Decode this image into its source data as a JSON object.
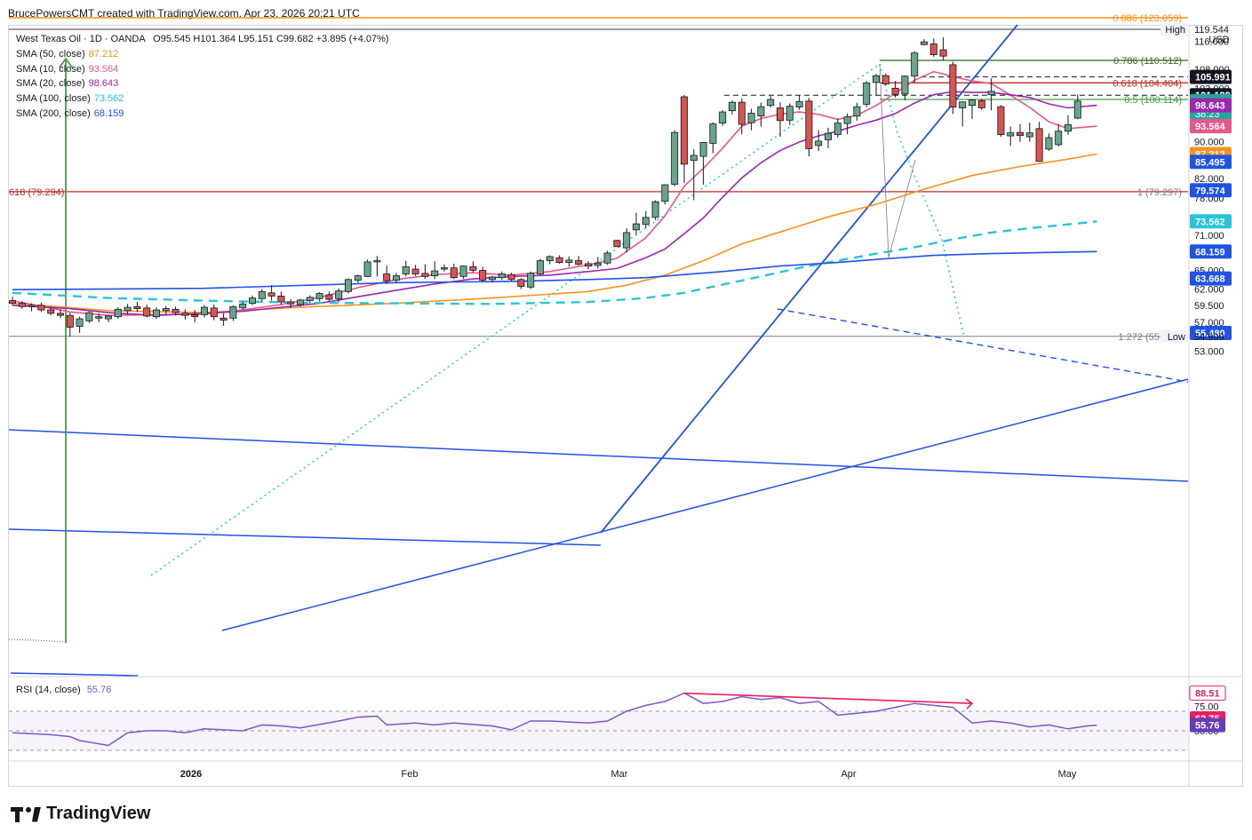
{
  "header": {
    "attribution": "BrucePowersCMT created with TradingView.com, Apr 23, 2026 20:21 UTC"
  },
  "legend": {
    "symbol": "West Texas Oil · 1D · OANDA",
    "ohlc": "O95.545 H101.364 L95.151 C99.682 +3.895 (+4.07%)",
    "indicators": [
      {
        "label": "SMA (50, close)",
        "value": "87.212",
        "color": "#f7931a"
      },
      {
        "label": "SMA (10, close)",
        "value": "93.564",
        "color": "#e8568a"
      },
      {
        "label": "SMA (20, close)",
        "value": "98.643",
        "color": "#9c27b0"
      },
      {
        "label": "SMA (100, close)",
        "value": "73.562",
        "color": "#26c6da"
      },
      {
        "label": "SMA (200, close)",
        "value": "68.159",
        "color": "#1e53e5"
      }
    ]
  },
  "rsi_legend": {
    "label": "RSI (14, close)",
    "value": "55.76"
  },
  "price_axis": {
    "currency": "USD",
    "ticks": [
      "116.000",
      "108.000",
      "103.000",
      "90.000",
      "82.000",
      "78.000",
      "74.000",
      "71.000",
      "65.000",
      "62.000",
      "59.500",
      "57.000",
      "53.000"
    ],
    "badges": [
      {
        "text": "High",
        "sub": "119.544",
        "y": 119.544,
        "style": "tag"
      },
      {
        "text": "105.991",
        "y": 105.991,
        "bg": "#131722",
        "fg": "#ffffff"
      },
      {
        "text": "101.189",
        "y": 101.189,
        "bg": "#131722",
        "fg": "#ffffff"
      },
      {
        "text": "99.682",
        "y": 99.682,
        "bg": "#26a69a",
        "fg": "#ffffff",
        "extra": "38:23"
      },
      {
        "text": "98.643",
        "y": 98.643,
        "bg": "#9c27b0",
        "fg": "#ffffff"
      },
      {
        "text": "93.564",
        "y": 93.564,
        "bg": "#e8568a",
        "fg": "#ffffff"
      },
      {
        "text": "87.212",
        "y": 87.212,
        "bg": "#f7931a",
        "fg": "#ffffff"
      },
      {
        "text": "85.495",
        "y": 85.495,
        "bg": "#1e53e5",
        "fg": "#ffffff"
      },
      {
        "text": "79.574",
        "y": 79.574,
        "bg": "#1e53e5",
        "fg": "#ffffff"
      },
      {
        "text": "73.562",
        "y": 73.562,
        "bg": "#26c6da",
        "fg": "#ffffff"
      },
      {
        "text": "68.159",
        "y": 68.159,
        "bg": "#1e53e5",
        "fg": "#ffffff"
      },
      {
        "text": "63.668",
        "y": 63.668,
        "bg": "#1e53e5",
        "fg": "#ffffff"
      },
      {
        "text": "55.480",
        "y": 55.48,
        "bg": "#1e53e5",
        "fg": "#ffffff"
      },
      {
        "text": "Low",
        "sub": "54.999",
        "y": 54.999,
        "style": "tag"
      }
    ]
  },
  "rsi_axis": {
    "ticks": [
      "75.00",
      "50.00"
    ],
    "badges": [
      {
        "text": "88.51",
        "bg": "#ffffff",
        "fg": "#e91e63",
        "border": "#e91e63",
        "v": 88.51
      },
      {
        "text": "62.75",
        "bg": "#e91e63",
        "fg": "#ffffff",
        "v": 62.75
      },
      {
        "text": "55.76",
        "bg": "#673ab7",
        "fg": "#ffffff",
        "v": 55.76
      }
    ]
  },
  "time_axis": {
    "labels": [
      "2026",
      "Feb",
      "Mar",
      "Apr",
      "May"
    ]
  },
  "fib_labels": [
    {
      "text": "0.886 (123.059)",
      "y": 123.059,
      "color": "#f7931a"
    },
    {
      "text": "0.786 (110.512)",
      "y": 110.512,
      "color": "#33691e"
    },
    {
      "text": "0.618 (104.404)",
      "y": 104.404,
      "color": "#c62828"
    },
    {
      "text": "0.5 (100.114)",
      "y": 100.114,
      "color": "#43a047"
    },
    {
      "text": "1 (79.297)",
      "y": 79.297,
      "color": "#787b86"
    },
    {
      "text": "1.272 (55.009)",
      "y": 55.009,
      "color": "#787b86"
    },
    {
      "text": "618 (79.294)",
      "y": 79.294,
      "color": "#c62828"
    }
  ],
  "chart_data": {
    "type": "candlestick",
    "symbol": "West Texas Oil",
    "timeframe": "1D",
    "candles": [
      [
        60.2,
        60.8,
        59.5,
        59.8
      ],
      [
        59.8,
        60.1,
        59.0,
        59.3
      ],
      [
        59.3,
        59.8,
        58.6,
        59.5
      ],
      [
        59.5,
        59.9,
        58.5,
        58.8
      ],
      [
        58.8,
        59.2,
        58.0,
        58.3
      ],
      [
        58.3,
        58.9,
        57.6,
        58.0
      ],
      [
        58.0,
        58.4,
        55.0,
        56.3
      ],
      [
        56.4,
        57.8,
        55.5,
        57.5
      ],
      [
        57.2,
        58.6,
        56.9,
        58.4
      ],
      [
        57.6,
        58.3,
        57.0,
        57.8
      ],
      [
        57.5,
        58.0,
        57.0,
        57.9
      ],
      [
        57.8,
        59.2,
        57.5,
        58.9
      ],
      [
        58.7,
        59.7,
        58.1,
        59.2
      ],
      [
        59.3,
        60.0,
        58.5,
        59.0
      ],
      [
        59.1,
        59.6,
        57.7,
        57.9
      ],
      [
        57.8,
        59.2,
        57.5,
        58.8
      ],
      [
        58.7,
        59.4,
        58.1,
        59.0
      ],
      [
        58.9,
        59.3,
        58.0,
        58.4
      ],
      [
        58.3,
        58.9,
        57.4,
        58.0
      ],
      [
        58.1,
        58.8,
        57.0,
        57.8
      ],
      [
        58.1,
        59.5,
        57.7,
        59.2
      ],
      [
        59.1,
        59.6,
        57.3,
        57.8
      ],
      [
        57.6,
        58.3,
        56.5,
        57.3
      ],
      [
        57.6,
        59.5,
        57.2,
        59.3
      ],
      [
        59.1,
        60.1,
        58.8,
        59.7
      ],
      [
        59.8,
        61.0,
        59.5,
        60.6
      ],
      [
        60.5,
        62.0,
        60.1,
        61.6
      ],
      [
        61.4,
        62.6,
        60.2,
        60.9
      ],
      [
        60.9,
        61.6,
        59.6,
        60.0
      ],
      [
        60.0,
        60.4,
        59.1,
        59.7
      ],
      [
        59.6,
        60.5,
        59.3,
        60.3
      ],
      [
        60.2,
        61.0,
        59.8,
        60.7
      ],
      [
        60.5,
        61.5,
        60.1,
        61.3
      ],
      [
        61.1,
        61.6,
        60.1,
        60.4
      ],
      [
        60.5,
        62.1,
        60.0,
        61.7
      ],
      [
        61.6,
        63.7,
        61.3,
        63.5
      ],
      [
        63.4,
        64.3,
        63.0,
        64.1
      ],
      [
        64.0,
        66.8,
        63.9,
        66.4
      ],
      [
        66.4,
        67.4,
        64.0,
        66.6
      ],
      [
        64.4,
        65.8,
        62.8,
        63.3
      ],
      [
        63.4,
        64.6,
        62.9,
        64.1
      ],
      [
        64.4,
        66.6,
        64.0,
        65.6
      ],
      [
        65.2,
        65.9,
        64.1,
        64.4
      ],
      [
        64.5,
        66.0,
        63.6,
        64.0
      ],
      [
        64.1,
        66.5,
        63.6,
        64.9
      ],
      [
        65.2,
        66.0,
        64.8,
        65.4
      ],
      [
        65.4,
        66.1,
        63.6,
        63.8
      ],
      [
        64.0,
        65.8,
        63.6,
        65.7
      ],
      [
        65.6,
        66.5,
        64.7,
        65.0
      ],
      [
        65.0,
        65.6,
        63.1,
        63.4
      ],
      [
        63.5,
        64.1,
        63.0,
        63.9
      ],
      [
        63.8,
        64.8,
        63.4,
        64.4
      ],
      [
        64.3,
        64.6,
        63.3,
        63.5
      ],
      [
        63.5,
        63.7,
        62.0,
        62.4
      ],
      [
        62.3,
        64.8,
        62.0,
        64.5
      ],
      [
        64.4,
        66.9,
        64.2,
        66.6
      ],
      [
        66.6,
        67.5,
        66.0,
        67.3
      ],
      [
        67.1,
        67.5,
        66.1,
        66.3
      ],
      [
        66.3,
        67.3,
        65.6,
        66.7
      ],
      [
        66.6,
        67.4,
        65.8,
        66.0
      ],
      [
        66.1,
        66.5,
        65.2,
        65.7
      ],
      [
        65.8,
        67.2,
        65.3,
        66.2
      ],
      [
        66.2,
        68.3,
        65.9,
        67.9
      ],
      [
        70.1,
        70.2,
        69.0,
        69.0
      ],
      [
        68.8,
        72.3,
        68.0,
        71.5
      ],
      [
        72.0,
        75.2,
        71.1,
        73.1
      ],
      [
        73.0,
        75.5,
        72.3,
        74.3
      ],
      [
        74.3,
        77.6,
        73.8,
        77.3
      ],
      [
        77.4,
        80.8,
        76.8,
        80.7
      ],
      [
        80.8,
        92.6,
        80.4,
        92.1
      ],
      [
        100.8,
        101.3,
        81.0,
        85.0
      ],
      [
        85.8,
        88.2,
        77.6,
        86.9
      ],
      [
        86.7,
        89.4,
        80.7,
        89.8
      ],
      [
        89.6,
        94.5,
        87.4,
        94.1
      ],
      [
        94.3,
        97.4,
        93.6,
        97.0
      ],
      [
        97.3,
        99.9,
        96.4,
        99.4
      ],
      [
        99.4,
        100.4,
        91.7,
        94.0
      ],
      [
        94.4,
        97.8,
        92.6,
        96.7
      ],
      [
        96.0,
        99.3,
        93.5,
        98.3
      ],
      [
        98.6,
        101.1,
        98.1,
        100.1
      ],
      [
        98.0,
        99.4,
        91.1,
        94.9
      ],
      [
        95.0,
        99.1,
        93.8,
        98.4
      ],
      [
        98.2,
        101.2,
        97.5,
        99.6
      ],
      [
        99.7,
        100.5,
        86.7,
        88.4
      ],
      [
        89.1,
        92.6,
        87.9,
        90.1
      ],
      [
        90.4,
        93.2,
        88.5,
        91.9
      ],
      [
        91.6,
        95.4,
        90.9,
        94.3
      ],
      [
        94.2,
        96.6,
        91.7,
        95.8
      ],
      [
        96.0,
        99.3,
        94.9,
        98.3
      ],
      [
        98.9,
        104.9,
        98.2,
        104.4
      ],
      [
        104.5,
        106.8,
        101.2,
        106.3
      ],
      [
        106.3,
        106.9,
        103.8,
        104.1
      ],
      [
        103.0,
        104.9,
        100.6,
        101.4
      ],
      [
        101.5,
        106.4,
        99.9,
        106.2
      ],
      [
        106.2,
        113.1,
        104.4,
        112.6
      ],
      [
        115.0,
        116.6,
        114.8,
        115.8
      ],
      [
        115.2,
        116.8,
        111.5,
        112.1
      ],
      [
        113.5,
        117.1,
        110.5,
        111.7
      ],
      [
        109.3,
        110.1,
        96.5,
        98.2
      ],
      [
        98.0,
        99.4,
        93.5,
        99.5
      ],
      [
        98.6,
        99.6,
        95.3,
        100.0
      ],
      [
        99.8,
        100.3,
        97.5,
        98.0
      ],
      [
        101.3,
        105.6,
        97.4,
        102.2
      ],
      [
        98.3,
        98.7,
        91.1,
        91.6
      ],
      [
        91.3,
        93.5,
        89.0,
        92.0
      ],
      [
        92.1,
        94.1,
        89.9,
        91.4
      ],
      [
        91.1,
        94.4,
        90.0,
        92.0
      ],
      [
        93.0,
        94.6,
        85.7,
        85.6
      ],
      [
        88.3,
        91.9,
        87.9,
        90.9
      ],
      [
        89.3,
        94.1,
        88.9,
        92.4
      ],
      [
        92.4,
        96.2,
        91.5,
        93.9
      ],
      [
        95.5,
        101.4,
        95.2,
        99.7
      ]
    ],
    "sma": {
      "SMA (50, close)": 87.212,
      "SMA (10, close)": 93.564,
      "SMA (20, close)": 98.643,
      "SMA (100, close)": 73.562,
      "SMA (200, close)": 68.159
    },
    "rsi": {
      "period": 14,
      "last": 55.76,
      "divergence_peak": 88.51
    },
    "price_range": [
      52,
      124
    ]
  }
}
